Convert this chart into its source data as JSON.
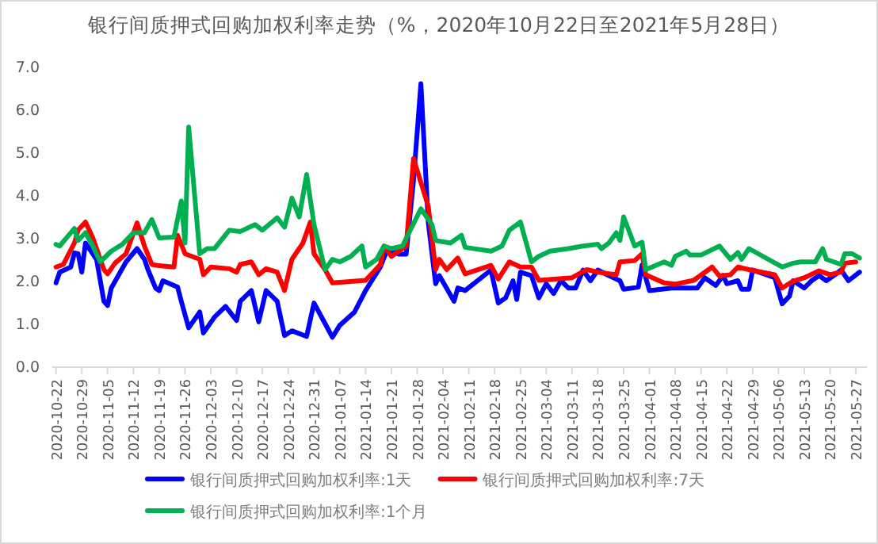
{
  "chart_data": {
    "type": "line",
    "title": "银行间质押式回购加权利率走势（%，2020年10月22日至2021年5月28日）",
    "xlim": [
      "2020-10-21",
      "2021-05-30"
    ],
    "xticks": [
      "2020-10-22",
      "2020-10-29",
      "2020-11-05",
      "2020-11-12",
      "2020-11-19",
      "2020-11-26",
      "2020-12-03",
      "2020-12-10",
      "2020-12-17",
      "2020-12-24",
      "2020-12-31",
      "2021-01-07",
      "2021-01-14",
      "2021-01-21",
      "2021-01-28",
      "2021-02-04",
      "2021-02-11",
      "2021-02-18",
      "2021-02-25",
      "2021-03-04",
      "2021-03-11",
      "2021-03-18",
      "2021-03-25",
      "2021-04-01",
      "2021-04-08",
      "2021-04-15",
      "2021-04-22",
      "2021-04-29",
      "2021-05-06",
      "2021-05-13",
      "2021-05-20",
      "2021-05-27"
    ],
    "ylim": [
      0,
      7
    ],
    "yticks": [
      {
        "value": 0,
        "label": "0.0"
      },
      {
        "value": 1,
        "label": "1.0"
      },
      {
        "value": 2,
        "label": "2.0"
      },
      {
        "value": 3,
        "label": "3.0"
      },
      {
        "value": 4,
        "label": "4.0"
      },
      {
        "value": 5,
        "label": "5.0"
      },
      {
        "value": 6,
        "label": "6.0"
      },
      {
        "value": 7,
        "label": "7.0"
      }
    ],
    "grid": false,
    "legend": "bottom",
    "marker": "none",
    "line_style": "solid",
    "series": [
      {
        "name": "银行间质押式回购加权利率:1天",
        "color": "#0000ff",
        "x": [
          "2020-10-22",
          "2020-10-23",
          "2020-10-26",
          "2020-10-27",
          "2020-10-28",
          "2020-10-29",
          "2020-10-30",
          "2020-11-02",
          "2020-11-04",
          "2020-11-05",
          "2020-11-06",
          "2020-11-10",
          "2020-11-13",
          "2020-11-15",
          "2020-11-16",
          "2020-11-18",
          "2020-11-19",
          "2020-11-20",
          "2020-11-24",
          "2020-11-25",
          "2020-11-27",
          "2020-11-30",
          "2020-12-01",
          "2020-12-04",
          "2020-12-07",
          "2020-12-10",
          "2020-12-11",
          "2020-12-14",
          "2020-12-16",
          "2020-12-18",
          "2020-12-21",
          "2020-12-23",
          "2020-12-25",
          "2020-12-29",
          "2020-12-31",
          "2021-01-05",
          "2021-01-07",
          "2021-01-11",
          "2021-01-14",
          "2021-01-18",
          "2021-01-20",
          "2021-01-23",
          "2021-01-25",
          "2021-01-27",
          "2021-01-29",
          "2021-01-31",
          "2021-02-02",
          "2021-02-03",
          "2021-02-07",
          "2021-02-08",
          "2021-02-10",
          "2021-02-17",
          "2021-02-19",
          "2021-02-21",
          "2021-02-23",
          "2021-02-24",
          "2021-02-25",
          "2021-02-28",
          "2021-03-02",
          "2021-03-04",
          "2021-03-06",
          "2021-03-08",
          "2021-03-10",
          "2021-03-12",
          "2021-03-14",
          "2021-03-16",
          "2021-03-18",
          "2021-03-21",
          "2021-03-24",
          "2021-03-25",
          "2021-03-29",
          "2021-03-30",
          "2021-04-01",
          "2021-04-07",
          "2021-04-14",
          "2021-04-16",
          "2021-04-19",
          "2021-04-21",
          "2021-04-22",
          "2021-04-25",
          "2021-04-26",
          "2021-04-28",
          "2021-04-29",
          "2021-05-05",
          "2021-05-06",
          "2021-05-07",
          "2021-05-09",
          "2021-05-10",
          "2021-05-13",
          "2021-05-15",
          "2021-05-17",
          "2021-05-19",
          "2021-05-21",
          "2021-05-23",
          "2021-05-25",
          "2021-05-28"
        ],
        "values": [
          1.95,
          2.2,
          2.32,
          2.65,
          2.63,
          2.2,
          2.88,
          2.5,
          1.52,
          1.42,
          1.83,
          2.44,
          2.75,
          2.5,
          2.25,
          1.83,
          1.77,
          2.0,
          1.85,
          1.52,
          0.9,
          1.27,
          0.78,
          1.15,
          1.4,
          1.07,
          1.52,
          1.77,
          1.04,
          1.77,
          1.52,
          0.72,
          0.83,
          0.7,
          1.48,
          0.68,
          0.96,
          1.27,
          1.77,
          2.32,
          2.75,
          2.62,
          2.62,
          4.35,
          6.6,
          3.36,
          1.93,
          2.12,
          1.52,
          1.83,
          1.77,
          2.25,
          1.48,
          1.6,
          2.0,
          1.56,
          2.2,
          2.12,
          1.6,
          1.93,
          1.7,
          2.0,
          1.83,
          1.83,
          2.25,
          2.0,
          2.25,
          2.12,
          2.0,
          1.8,
          1.85,
          2.37,
          1.77,
          1.83,
          1.83,
          2.07,
          1.89,
          2.12,
          1.93,
          2.0,
          1.8,
          1.8,
          2.25,
          2.07,
          1.77,
          1.46,
          1.64,
          2.0,
          1.83,
          2.0,
          2.12,
          2.0,
          2.12,
          2.25,
          2.0,
          2.2
        ]
      },
      {
        "name": "银行间质押式回购加权利率:7天",
        "color": "#ff0000",
        "x": [
          "2020-10-22",
          "2020-10-24",
          "2020-10-27",
          "2020-10-28",
          "2020-10-30",
          "2020-11-01",
          "2020-11-02",
          "2020-11-04",
          "2020-11-05",
          "2020-11-07",
          "2020-11-10",
          "2020-11-13",
          "2020-11-15",
          "2020-11-17",
          "2020-11-19",
          "2020-11-23",
          "2020-11-24",
          "2020-11-26",
          "2020-11-30",
          "2020-12-01",
          "2020-12-03",
          "2020-12-08",
          "2020-12-10",
          "2020-12-11",
          "2020-12-14",
          "2020-12-16",
          "2020-12-18",
          "2020-12-21",
          "2020-12-23",
          "2020-12-25",
          "2020-12-28",
          "2020-12-30",
          "2020-12-31",
          "2021-01-03",
          "2021-01-05",
          "2021-01-14",
          "2021-01-18",
          "2021-01-19",
          "2021-01-21",
          "2021-01-25",
          "2021-01-27",
          "2021-01-31",
          "2021-02-02",
          "2021-02-03",
          "2021-02-05",
          "2021-02-08",
          "2021-02-10",
          "2021-02-17",
          "2021-02-19",
          "2021-02-22",
          "2021-02-25",
          "2021-02-28",
          "2021-03-02",
          "2021-03-11",
          "2021-03-15",
          "2021-03-18",
          "2021-03-23",
          "2021-03-24",
          "2021-03-28",
          "2021-03-30",
          "2021-03-31",
          "2021-04-05",
          "2021-04-08",
          "2021-04-13",
          "2021-04-18",
          "2021-04-20",
          "2021-04-23",
          "2021-04-25",
          "2021-04-28",
          "2021-05-05",
          "2021-05-07",
          "2021-05-10",
          "2021-05-13",
          "2021-05-17",
          "2021-05-20",
          "2021-05-23",
          "2021-05-24",
          "2021-05-27"
        ],
        "values": [
          2.32,
          2.38,
          2.88,
          3.18,
          3.37,
          3.0,
          2.75,
          2.26,
          2.16,
          2.41,
          2.63,
          3.35,
          2.81,
          2.38,
          2.35,
          2.32,
          3.06,
          2.63,
          2.5,
          2.14,
          2.32,
          2.28,
          2.2,
          2.38,
          2.44,
          2.14,
          2.28,
          2.2,
          1.77,
          2.5,
          2.88,
          3.37,
          2.63,
          2.26,
          1.95,
          2.01,
          2.38,
          2.81,
          2.57,
          2.81,
          4.85,
          3.74,
          2.26,
          2.5,
          2.26,
          2.53,
          2.16,
          2.36,
          2.04,
          2.44,
          2.32,
          2.32,
          2.01,
          2.07,
          2.26,
          2.2,
          2.14,
          2.44,
          2.47,
          2.63,
          2.14,
          1.95,
          1.92,
          2.01,
          2.32,
          2.11,
          2.14,
          2.32,
          2.26,
          2.14,
          1.83,
          1.99,
          2.07,
          2.23,
          2.14,
          2.2,
          2.41,
          2.44
        ]
      },
      {
        "name": "银行间质押式回购加权利率:1个月",
        "color": "#00b050",
        "x": [
          "2020-10-22",
          "2020-10-23",
          "2020-10-27",
          "2020-10-28",
          "2020-10-30",
          "2020-11-01",
          "2020-11-03",
          "2020-11-06",
          "2020-11-09",
          "2020-11-12",
          "2020-11-15",
          "2020-11-17",
          "2020-11-19",
          "2020-11-23",
          "2020-11-25",
          "2020-11-26",
          "2020-11-27",
          "2020-11-30",
          "2020-12-02",
          "2020-12-04",
          "2020-12-08",
          "2020-12-11",
          "2020-12-15",
          "2020-12-17",
          "2020-12-21",
          "2020-12-23",
          "2020-12-25",
          "2020-12-27",
          "2020-12-29",
          "2020-12-31",
          "2021-01-03",
          "2021-01-05",
          "2021-01-07",
          "2021-01-10",
          "2021-01-13",
          "2021-01-14",
          "2021-01-17",
          "2021-01-19",
          "2021-01-21",
          "2021-01-24",
          "2021-01-29",
          "2021-02-01",
          "2021-02-02",
          "2021-02-06",
          "2021-02-09",
          "2021-02-10",
          "2021-02-17",
          "2021-02-20",
          "2021-02-22",
          "2021-02-25",
          "2021-02-28",
          "2021-03-02",
          "2021-03-05",
          "2021-03-10",
          "2021-03-14",
          "2021-03-18",
          "2021-03-19",
          "2021-03-21",
          "2021-03-23",
          "2021-03-24",
          "2021-03-25",
          "2021-03-28",
          "2021-03-30",
          "2021-03-31",
          "2021-04-05",
          "2021-04-07",
          "2021-04-08",
          "2021-04-11",
          "2021-04-12",
          "2021-04-15",
          "2021-04-20",
          "2021-04-23",
          "2021-04-25",
          "2021-04-26",
          "2021-04-28",
          "2021-05-07",
          "2021-05-10",
          "2021-05-12",
          "2021-05-16",
          "2021-05-18",
          "2021-05-19",
          "2021-05-23",
          "2021-05-24",
          "2021-05-26",
          "2021-05-28"
        ],
        "values": [
          2.85,
          2.81,
          3.22,
          2.94,
          3.12,
          2.81,
          2.44,
          2.69,
          2.85,
          3.12,
          3.12,
          3.43,
          3.0,
          3.02,
          3.86,
          2.88,
          5.59,
          2.63,
          2.75,
          2.75,
          3.18,
          3.15,
          3.31,
          3.18,
          3.47,
          3.25,
          3.93,
          3.49,
          4.48,
          3.31,
          2.26,
          2.5,
          2.44,
          2.57,
          2.81,
          2.32,
          2.5,
          2.81,
          2.75,
          2.81,
          3.68,
          3.31,
          2.94,
          2.88,
          3.06,
          2.78,
          2.69,
          2.81,
          3.18,
          3.37,
          2.44,
          2.57,
          2.69,
          2.75,
          2.81,
          2.85,
          2.75,
          2.88,
          3.12,
          2.94,
          3.49,
          2.81,
          2.9,
          2.26,
          2.44,
          2.36,
          2.57,
          2.69,
          2.6,
          2.6,
          2.81,
          2.5,
          2.66,
          2.5,
          2.75,
          2.32,
          2.41,
          2.44,
          2.44,
          2.75,
          2.5,
          2.38,
          2.63,
          2.63,
          2.53
        ]
      }
    ]
  }
}
